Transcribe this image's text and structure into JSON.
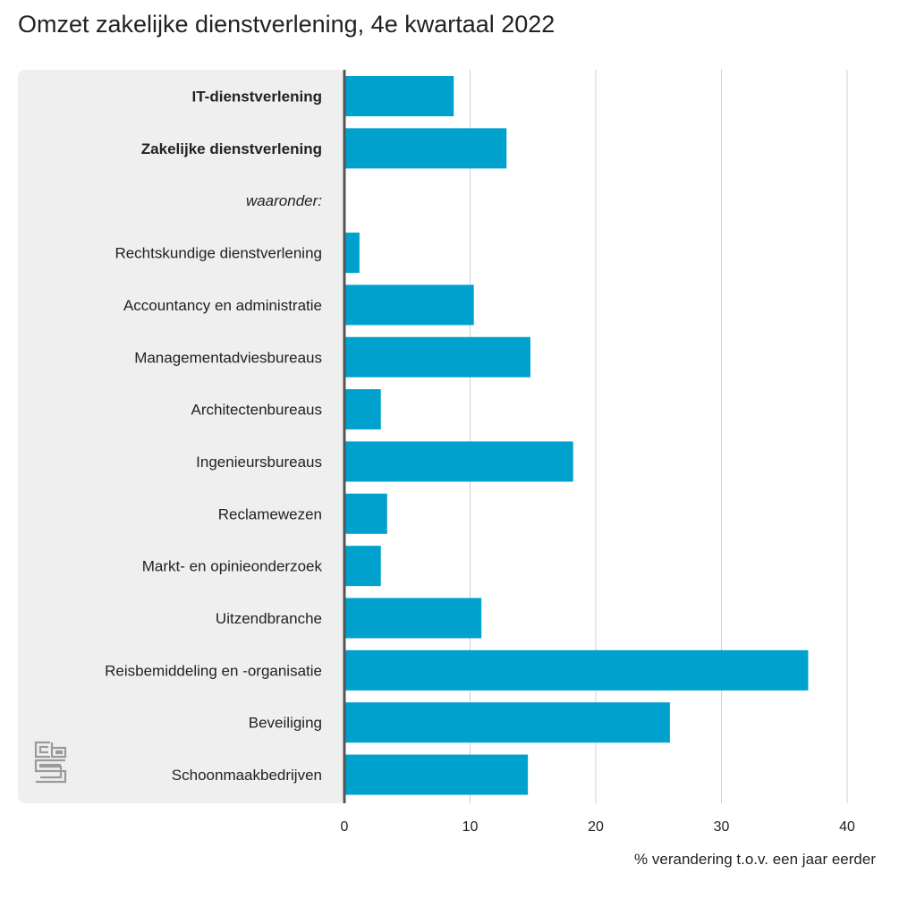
{
  "chart_data": {
    "type": "bar",
    "orientation": "horizontal",
    "title": "Omzet zakelijke dienstverlening, 4e kwartaal 2022",
    "xlabel": "% verandering t.o.v. een jaar eerder",
    "ylabel": "",
    "xlim": [
      0,
      40
    ],
    "xticks": [
      0,
      10,
      20,
      30,
      40
    ],
    "grid": true,
    "bar_color": "#00a1cd",
    "label_panel_color": "#efefef",
    "categories": [
      "IT-dienstverlening",
      "Zakelijke dienstverlening",
      "waaronder:",
      "Rechtskundige dienstverlening",
      "Accountancy en administratie",
      "Managementadviesbureaus",
      "Architectenbureaus",
      "Ingenieursbureaus",
      "Reclamewezen",
      "Markt- en opinieonderzoek",
      "Uitzendbranche",
      "Reisbemiddeling en -organisatie",
      "Beveiliging",
      "Schoonmaakbedrijven"
    ],
    "label_styles": [
      "bold",
      "bold",
      "italic",
      "normal",
      "normal",
      "normal",
      "normal",
      "normal",
      "normal",
      "normal",
      "normal",
      "normal",
      "normal",
      "normal"
    ],
    "values": [
      8.7,
      12.9,
      null,
      1.2,
      10.3,
      14.8,
      2.9,
      18.2,
      3.4,
      2.9,
      10.9,
      36.9,
      25.9,
      14.6
    ]
  },
  "logo": {
    "text": "cbs",
    "icon": "cbs-logo-icon"
  }
}
